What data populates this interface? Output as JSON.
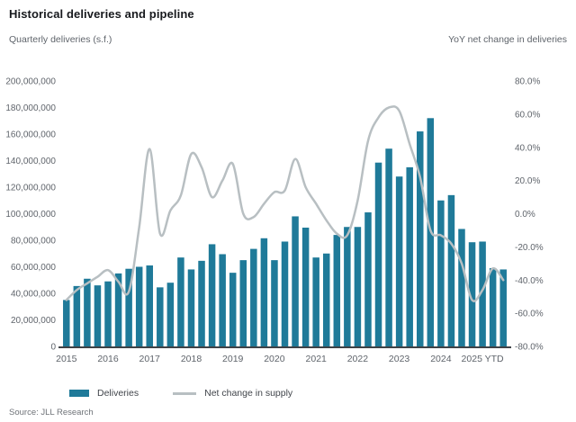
{
  "title": "Historical deliveries and pipeline",
  "left_axis_title": "Quarterly deliveries (s.f.)",
  "right_axis_title": "YoY net change in deliveries",
  "legend": {
    "deliveries_label": "Deliveries",
    "net_change_label": "Net change in supply"
  },
  "source": "Source: JLL Research",
  "colors": {
    "bar": "#1f7a99",
    "line": "#b8bfc2",
    "baseline": "#3f4347",
    "tick_text": "#5f646b"
  },
  "chart_data": {
    "type": "bar+line",
    "title": "Historical deliveries and pipeline",
    "x_year_labels": [
      "2015",
      "2016",
      "2017",
      "2018",
      "2019",
      "2020",
      "2021",
      "2022",
      "2023",
      "2024",
      "2025 YTD"
    ],
    "quarters_per_year": 4,
    "left_axis": {
      "label": "Quarterly deliveries (s.f.)",
      "min": 0,
      "max": 200000000,
      "step": 20000000
    },
    "right_axis": {
      "label": "YoY net change in deliveries",
      "min": -80,
      "max": 80,
      "step": 20,
      "unit": "%"
    },
    "grid": false,
    "legend_position": "bottom",
    "series": [
      {
        "name": "Deliveries",
        "type": "bar",
        "axis": "left",
        "values": [
          35000000,
          45500000,
          51000000,
          46000000,
          49000000,
          55000000,
          58500000,
          60000000,
          61000000,
          44500000,
          48000000,
          67000000,
          58000000,
          64500000,
          77000000,
          69500000,
          55500000,
          65000000,
          73500000,
          81500000,
          65000000,
          79000000,
          98000000,
          89500000,
          67000000,
          70000000,
          84000000,
          90000000,
          90000000,
          101000000,
          138500000,
          149000000,
          128000000,
          135000000,
          162000000,
          172000000,
          110000000,
          114000000,
          88500000,
          78500000,
          79000000,
          59000000,
          58000000
        ]
      },
      {
        "name": "Net change in supply",
        "type": "line",
        "axis": "right",
        "values": [
          -52,
          -46,
          -42,
          -38,
          -34,
          -41,
          -47,
          -8,
          39,
          -12,
          2,
          11,
          36,
          28,
          10,
          20,
          30,
          0,
          -2,
          6,
          13,
          14,
          33,
          16,
          6,
          -4,
          -12,
          -13,
          8,
          44,
          58,
          64,
          62,
          42,
          22,
          -10,
          -13,
          -18,
          -30,
          -52,
          -46,
          -33,
          -40
        ]
      }
    ]
  }
}
